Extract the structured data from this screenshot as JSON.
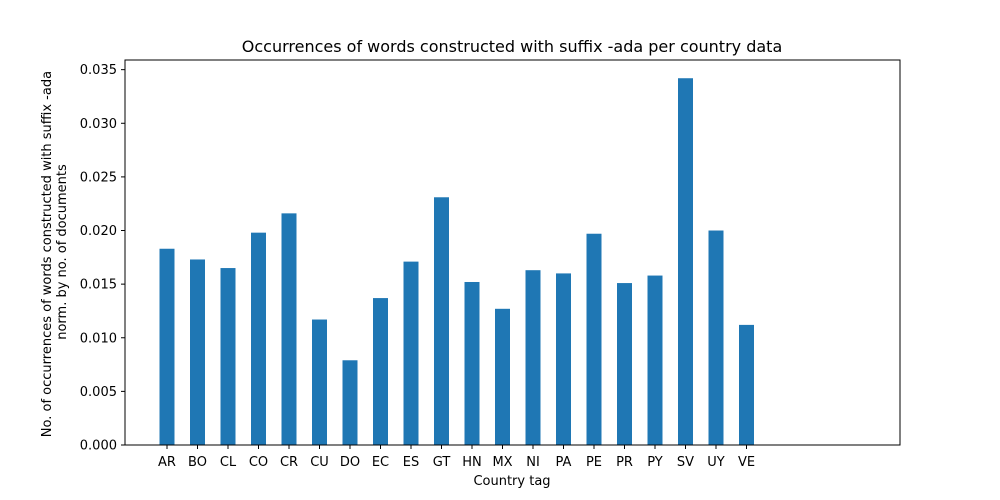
{
  "chart_data": {
    "type": "bar",
    "title": "Occurrences of words constructed with suffix -ada per country data",
    "xlabel": "Country tag",
    "ylabel_lines": [
      "No. of occurrences of words constructed with suffix -ada",
      "norm. by no. of documents"
    ],
    "categories": [
      "AR",
      "BO",
      "CL",
      "CO",
      "CR",
      "CU",
      "DO",
      "EC",
      "ES",
      "GT",
      "HN",
      "MX",
      "NI",
      "PA",
      "PE",
      "PR",
      "PY",
      "SV",
      "UY",
      "VE"
    ],
    "values": [
      0.0183,
      0.0173,
      0.0165,
      0.0198,
      0.0216,
      0.0117,
      0.0079,
      0.0137,
      0.0171,
      0.0231,
      0.0152,
      0.0127,
      0.0163,
      0.016,
      0.0197,
      0.0151,
      0.0158,
      0.0342,
      0.02,
      0.0112
    ],
    "yticks": [
      "0.000",
      "0.005",
      "0.010",
      "0.015",
      "0.020",
      "0.025",
      "0.030",
      "0.035"
    ],
    "ylim": [
      0,
      0.0359
    ],
    "grid": false,
    "bar_color": "#1f77b4"
  }
}
